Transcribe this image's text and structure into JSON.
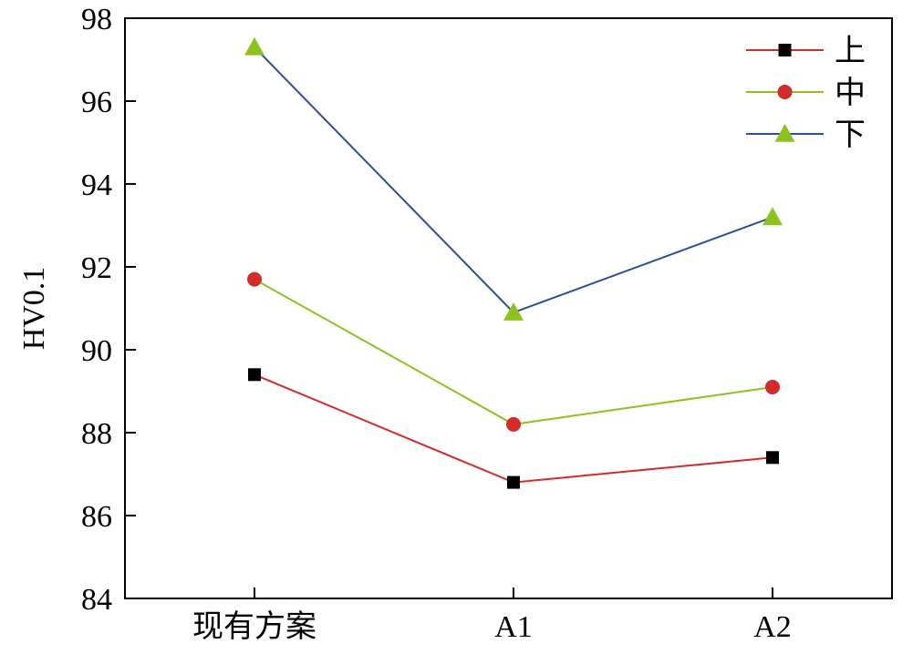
{
  "chart_data": {
    "type": "line",
    "title": "",
    "xlabel": "",
    "ylabel": "HV0.1",
    "categories": [
      "现有方案",
      "A1",
      "A2"
    ],
    "ylim": [
      84,
      98
    ],
    "yticks": [
      84,
      86,
      88,
      90,
      92,
      94,
      96,
      98
    ],
    "grid": false,
    "legend_position": "top-right",
    "series": [
      {
        "name": "上",
        "values": [
          89.4,
          86.8,
          87.4
        ],
        "color": "#d42a2a",
        "marker": "square",
        "marker_color": "#000000"
      },
      {
        "name": "中",
        "values": [
          91.7,
          88.2,
          89.1
        ],
        "color": "#8dc21f",
        "marker": "circle",
        "marker_color": "#d42a2a"
      },
      {
        "name": "下",
        "values": [
          97.3,
          90.9,
          93.2
        ],
        "color": "#2b4f9a",
        "marker": "triangle",
        "marker_color": "#8dc21f"
      }
    ]
  }
}
